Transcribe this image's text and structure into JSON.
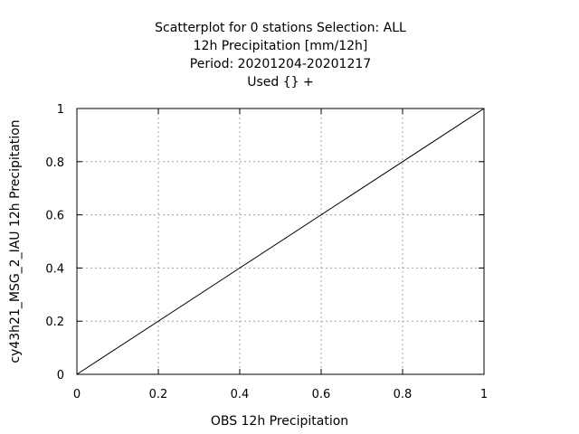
{
  "chart_data": {
    "type": "scatter",
    "title_lines": [
      "Scatterplot for    0 stations Selection: ALL",
      "12h Precipitation [mm/12h]",
      "Period: 20201204-20201217",
      "Used {} +"
    ],
    "xlabel": "OBS 12h Precipitation",
    "ylabel": "cy43h21_MSG_2_IAU 12h Precipitation",
    "xlim": [
      0,
      1
    ],
    "ylim": [
      0,
      1
    ],
    "x_ticks": [
      "0",
      "0.2",
      "0.4",
      "0.6",
      "0.8",
      "1"
    ],
    "y_ticks": [
      "0",
      "0.2",
      "0.4",
      "0.6",
      "0.8",
      "1"
    ],
    "grid": true,
    "series": [],
    "reference_line": {
      "x": [
        0,
        1
      ],
      "y": [
        0,
        1
      ]
    }
  }
}
